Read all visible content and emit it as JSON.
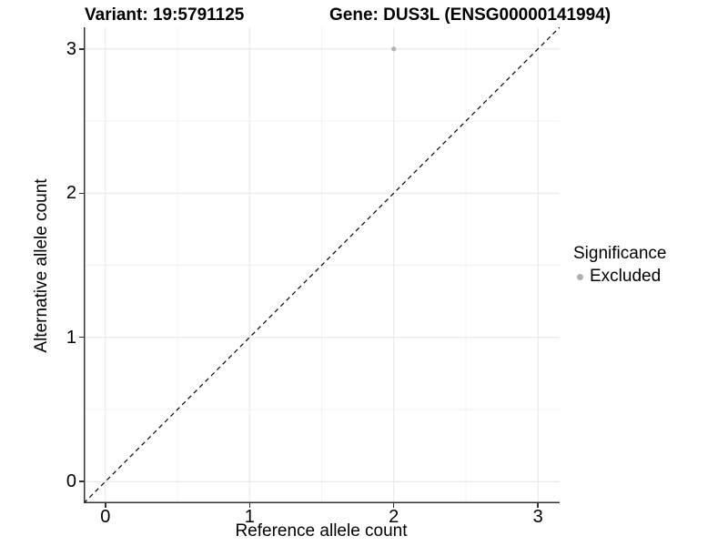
{
  "chart_data": {
    "type": "scatter",
    "titles": {
      "variant": "Variant: 19:5791125",
      "gene": "Gene: DUS3L (ENSG00000141994)"
    },
    "xlabel": "Reference allele count",
    "ylabel": "Alternative allele count",
    "xlim": [
      -0.15,
      3.15
    ],
    "ylim": [
      -0.15,
      3.15
    ],
    "x_ticks": [
      {
        "v": 0,
        "label": "0"
      },
      {
        "v": 1,
        "label": "1"
      },
      {
        "v": 2,
        "label": "2"
      },
      {
        "v": 3,
        "label": "3"
      }
    ],
    "y_ticks": [
      {
        "v": 0,
        "label": "0"
      },
      {
        "v": 1,
        "label": "1"
      },
      {
        "v": 2,
        "label": "2"
      },
      {
        "v": 3,
        "label": "3"
      }
    ],
    "x_minor": [
      0.5,
      1.5,
      2.5
    ],
    "y_minor": [
      0.5,
      1.5,
      2.5
    ],
    "grid": "on",
    "points": [
      {
        "x": 2,
        "y": 3,
        "series": "Excluded"
      }
    ],
    "reference_line": {
      "type": "identity",
      "style": "dashed",
      "color": "#000000"
    },
    "legend": {
      "position": "right",
      "title": "Significance",
      "entries": [
        {
          "label": "Excluded",
          "color": "#b0b0b0"
        }
      ]
    },
    "colors": {
      "point": "#b3b3b3",
      "grid_major": "#e6e6e6",
      "grid_minor": "#f2f2f2",
      "axis_line": "#333333",
      "text": "#000000",
      "background": "#ffffff"
    }
  }
}
